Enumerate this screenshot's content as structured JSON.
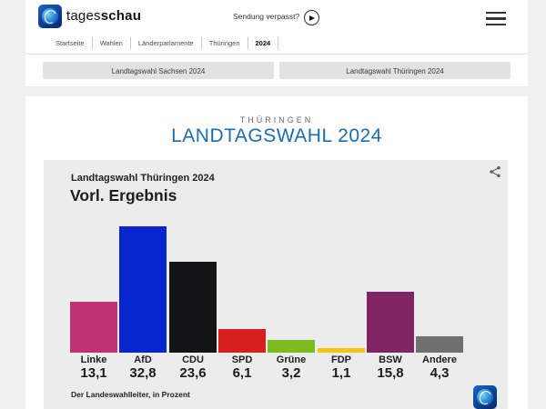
{
  "header": {
    "brand_regular": "tages",
    "brand_bold": "schau",
    "sendung_verpasst": "Sendung verpasst?",
    "breadcrumb": [
      "Startseite",
      "Wahlen",
      "Länderparlamente",
      "Thüringen",
      "2024"
    ]
  },
  "nav_buttons": [
    {
      "label": "Landtagswahl Sachsen 2024"
    },
    {
      "label": "Landtagswahl Thüringen 2024"
    }
  ],
  "page": {
    "kicker": "THÜRINGEN",
    "title": "LANDTAGSWAHL 2024",
    "title_color": "#1b6cb0"
  },
  "chart_data": {
    "type": "bar",
    "title": "Landtagswahl Thüringen 2024",
    "subtitle": "Vorl. Ergebnis",
    "source_note": "Der Landeswahlleiter, in Prozent",
    "unit": "Prozent",
    "categories": [
      "Linke",
      "AfD",
      "CDU",
      "SPD",
      "Grüne",
      "FDP",
      "BSW",
      "Andere"
    ],
    "values": [
      13.1,
      32.8,
      23.6,
      6.1,
      3.2,
      1.1,
      15.8,
      4.3
    ],
    "value_labels": [
      "13,1",
      "32,8",
      "23,6",
      "6,1",
      "3,2",
      "1,1",
      "15,8",
      "4,3"
    ],
    "colors": [
      "#bf3374",
      "#0826cd",
      "#141416",
      "#d6201f",
      "#7abc20",
      "#f6c40f",
      "#7f2465",
      "#707070"
    ],
    "ylim": [
      0,
      35
    ],
    "grid": false,
    "legend": false
  }
}
